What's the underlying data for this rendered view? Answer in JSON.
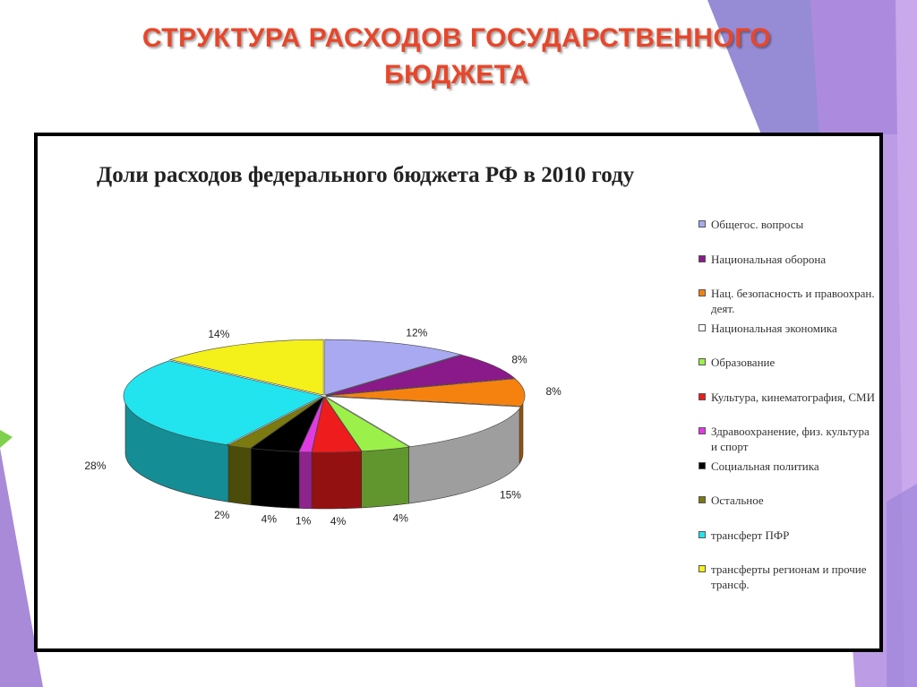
{
  "slide": {
    "title_line1": "СТРУКТУРА РАСХОДОВ ГОСУДАРСТВЕННОГО",
    "title_line2": "БЮДЖЕТА",
    "title_color": "#e8462a"
  },
  "chart_data": {
    "type": "pie",
    "title": "Доли расходов федерального бюджета РФ в 2010 году",
    "legend_position": "right",
    "unit": "%",
    "slices": [
      {
        "name": "Общегос. вопросы",
        "value": 12,
        "color": "#a9a9f2"
      },
      {
        "name": "Национальная оборона",
        "value": 8,
        "color": "#8a1a8a"
      },
      {
        "name": "Нац. безопасность и правоохран. деят.",
        "value": 8,
        "color": "#f5820f"
      },
      {
        "name": "Национальная экономика",
        "value": 15,
        "color": "#ffffff"
      },
      {
        "name": "Образование",
        "value": 4,
        "color": "#9cf04a"
      },
      {
        "name": "Культура, кинематография, СМИ",
        "value": 4,
        "color": "#ee1c1c"
      },
      {
        "name": "Здравоохранение, физ. культура и спорт",
        "value": 1,
        "color": "#e23ae2"
      },
      {
        "name": "Социальная политика",
        "value": 4,
        "color": "#000000"
      },
      {
        "name": "Остальное",
        "value": 2,
        "color": "#7a7a10"
      },
      {
        "name": "трансферт ПФР",
        "value": 28,
        "color": "#22e4ee"
      },
      {
        "name": "трансферты регионам и прочие трансф.",
        "value": 14,
        "color": "#f4f01a"
      }
    ]
  }
}
